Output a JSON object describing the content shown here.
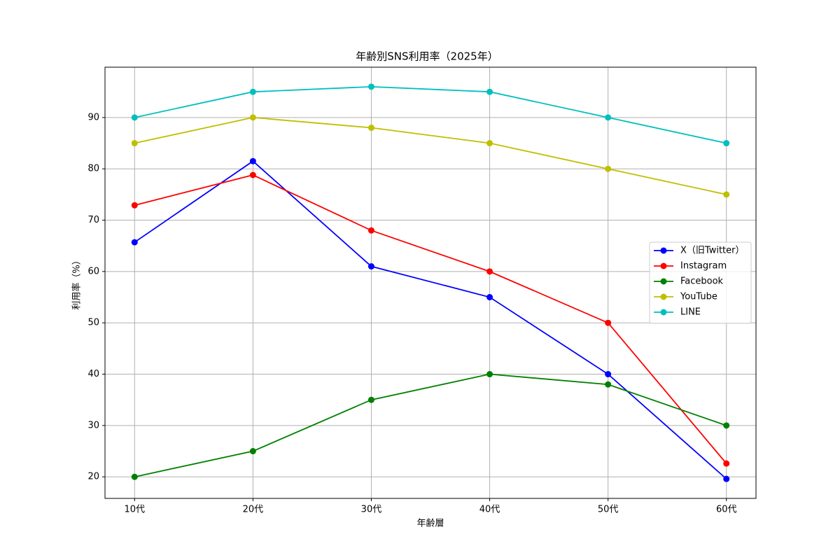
{
  "chart_data": {
    "type": "line",
    "title": "年齢別SNS利用率（2025年）",
    "x_label": "年齢層",
    "y_label": "利用率（%）",
    "categories": [
      "10代",
      "20代",
      "30代",
      "40代",
      "50代",
      "60代"
    ],
    "series": [
      {
        "name": "X（旧Twitter）",
        "color": "#0000ff",
        "values": [
          65.7,
          81.5,
          61,
          55,
          40,
          19.6
        ]
      },
      {
        "name": "Instagram",
        "color": "#ff0000",
        "values": [
          72.9,
          78.8,
          68,
          60,
          50,
          22.6
        ]
      },
      {
        "name": "Facebook",
        "color": "#008000",
        "values": [
          20,
          25,
          35,
          40,
          38,
          30
        ]
      },
      {
        "name": "YouTube",
        "color": "#bfbf00",
        "values": [
          85,
          90,
          88,
          85,
          80,
          75
        ]
      },
      {
        "name": "LINE",
        "color": "#00bfbf",
        "values": [
          90,
          95,
          96,
          95,
          90,
          85
        ]
      }
    ],
    "ylim": [
      15.8,
      99.8
    ],
    "yticks": [
      20,
      30,
      40,
      50,
      60,
      70,
      80,
      90
    ],
    "grid": true,
    "legend": "center right"
  }
}
